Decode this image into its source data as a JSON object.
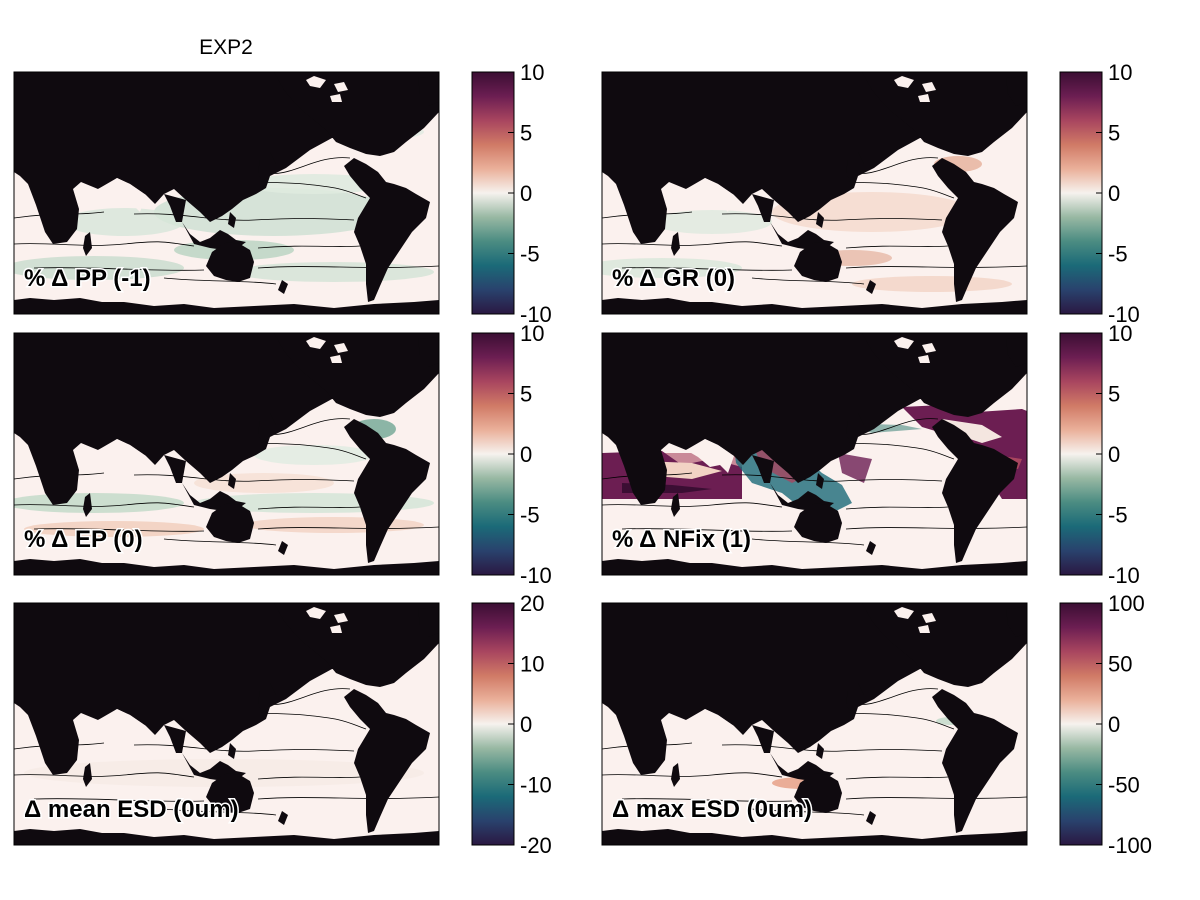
{
  "figure": {
    "title": "EXP2",
    "colors": {
      "land": "#0f0a0f",
      "ocean": "#fbf1ee",
      "contour": "#000000",
      "frame": "#000000"
    },
    "colormap": [
      "#2a1842",
      "#29426d",
      "#1b6a78",
      "#4b8c82",
      "#98b8a3",
      "#f6f2ee",
      "#eab09a",
      "#d07a66",
      "#a8455f",
      "#6c1e52",
      "#3b0e33"
    ],
    "panels": [
      {
        "id": "pp",
        "label": "% Δ PP (-1)",
        "ticks": [
          "10",
          "5",
          "0",
          "-5",
          "-10"
        ],
        "field": "greenish-negative"
      },
      {
        "id": "gr",
        "label": "% Δ GR (0)",
        "ticks": [
          "10",
          "5",
          "0",
          "-5",
          "-10"
        ],
        "field": "mixed-slight-positive"
      },
      {
        "id": "ep",
        "label": "% Δ EP (0)",
        "ticks": [
          "10",
          "5",
          "0",
          "-5",
          "-10"
        ],
        "field": "greenish-negative"
      },
      {
        "id": "nfix",
        "label": "% Δ NFix (1)",
        "ticks": [
          "10",
          "5",
          "0",
          "-5",
          "-10"
        ],
        "field": "strong-tropical-positive"
      },
      {
        "id": "mean_esd",
        "label": "Δ mean ESD (0um)",
        "ticks": [
          "20",
          "10",
          "0",
          "-10",
          "-20"
        ],
        "field": "near-zero"
      },
      {
        "id": "max_esd",
        "label": "Δ max ESD (0um)",
        "ticks": [
          "100",
          "50",
          "0",
          "-50",
          "-100"
        ],
        "field": "near-zero"
      }
    ]
  }
}
